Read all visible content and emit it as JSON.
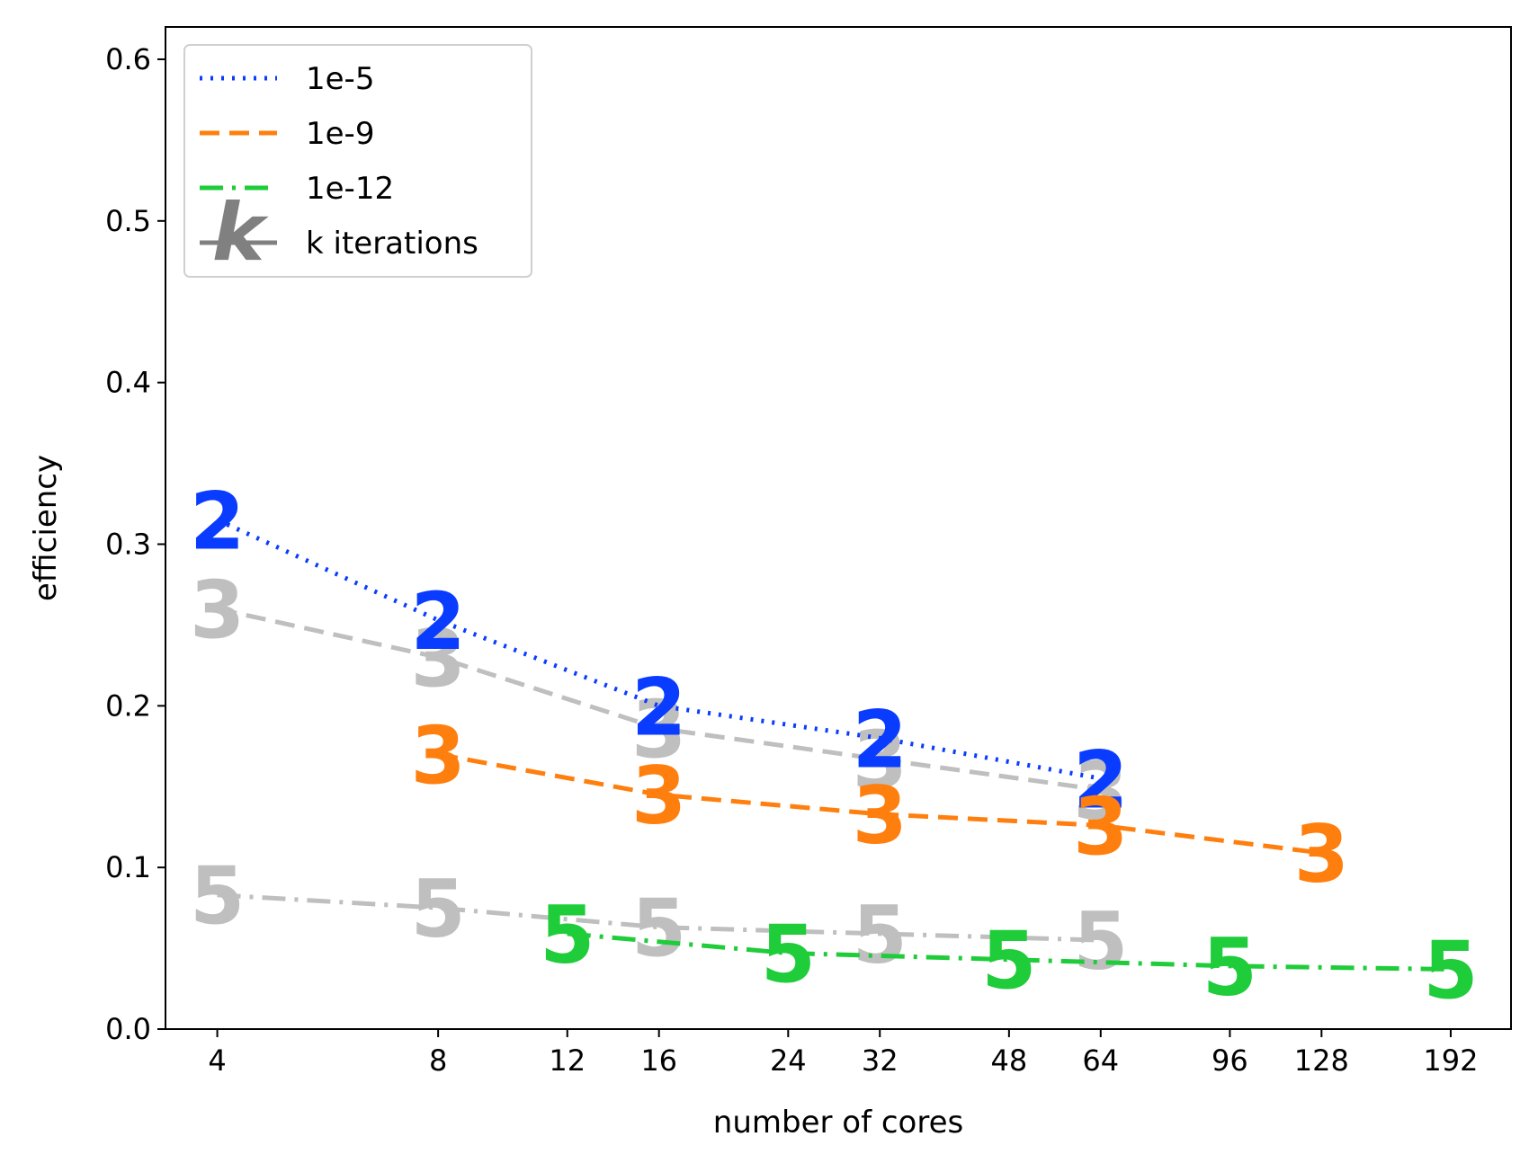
{
  "chart_data": {
    "type": "line",
    "title": "",
    "xlabel": "number of cores",
    "ylabel": "efficiency",
    "x_scale": "log2",
    "xlim": [
      3.4,
      232
    ],
    "ylim": [
      0.0,
      0.62
    ],
    "x_ticks": [
      4,
      8,
      12,
      16,
      24,
      32,
      48,
      64,
      96,
      128,
      192
    ],
    "x_tick_labels": [
      "4",
      "8",
      "12",
      "16",
      "24",
      "32",
      "48",
      "64",
      "96",
      "128",
      "192"
    ],
    "y_ticks": [
      0.0,
      0.1,
      0.2,
      0.3,
      0.4,
      0.5,
      0.6
    ],
    "y_tick_labels": [
      "0.0",
      "0.1",
      "0.2",
      "0.3",
      "0.4",
      "0.5",
      "0.6"
    ],
    "grid": false,
    "legend": {
      "placement": "top-left",
      "entries": [
        {
          "label": "1e-5",
          "color": "#0a3cff",
          "style": "dotted"
        },
        {
          "label": "1e-9",
          "color": "#ff7f0e",
          "style": "dashed"
        },
        {
          "label": "1e-12",
          "color": "#1fcc3a",
          "style": "dashdot"
        },
        {
          "label": "k iterations",
          "color": "#808080",
          "style": "solid",
          "marker_text": "k"
        }
      ]
    },
    "series": [
      {
        "name": "1e-5",
        "color": "#0a3cff",
        "style": "dotted",
        "x": [
          4,
          8,
          16,
          32,
          64
        ],
        "y": [
          0.315,
          0.253,
          0.2,
          0.18,
          0.155
        ],
        "labels": [
          "2",
          "2",
          "2",
          "2",
          "2"
        ]
      },
      {
        "name": "1e-9",
        "color": "#ff7f0e",
        "style": "dashed",
        "x": [
          8,
          16,
          32,
          64,
          128
        ],
        "y": [
          0.17,
          0.145,
          0.133,
          0.126,
          0.109
        ],
        "labels": [
          "3",
          "3",
          "3",
          "3",
          "3"
        ]
      },
      {
        "name": "1e-12",
        "color": "#1fcc3a",
        "style": "dashdot",
        "x": [
          12,
          24,
          48,
          96,
          192
        ],
        "y": [
          0.059,
          0.047,
          0.043,
          0.039,
          0.037
        ],
        "labels": [
          "5",
          "5",
          "5",
          "5",
          "5"
        ]
      },
      {
        "color": "#bfbfbf",
        "style": "dashed",
        "x": [
          4,
          8,
          16,
          32,
          64
        ],
        "y": [
          0.26,
          0.23,
          0.186,
          0.167,
          0.148
        ],
        "labels": [
          "3",
          "3",
          "3",
          "3",
          "3"
        ]
      },
      {
        "color": "#bfbfbf",
        "style": "dashdot",
        "x": [
          4,
          8,
          16,
          32,
          64
        ],
        "y": [
          0.083,
          0.075,
          0.063,
          0.059,
          0.055
        ],
        "labels": [
          "5",
          "5",
          "5",
          "5",
          "5"
        ]
      }
    ]
  }
}
